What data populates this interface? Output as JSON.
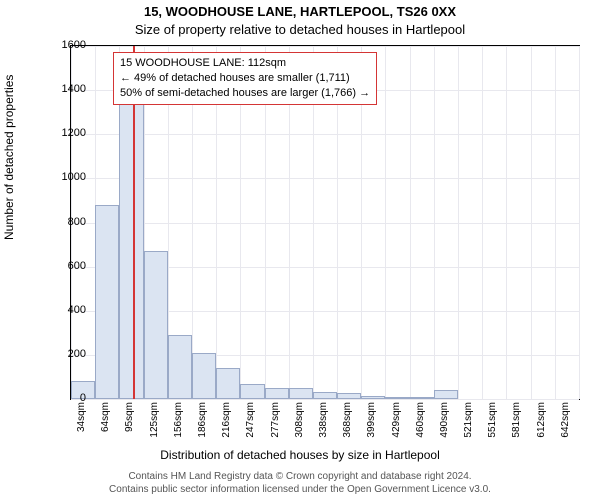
{
  "titles": {
    "line1": "15, WOODHOUSE LANE, HARTLEPOOL, TS26 0XX",
    "line2": "Size of property relative to detached houses in Hartlepool"
  },
  "axes": {
    "ylabel": "Number of detached properties",
    "xlabel": "Distribution of detached houses by size in Hartlepool",
    "ylim": [
      0,
      1600
    ],
    "ytick_step": 200,
    "yticks": [
      "0",
      "200",
      "400",
      "600",
      "800",
      "1000",
      "1200",
      "1400",
      "1600"
    ]
  },
  "chart": {
    "type": "histogram",
    "categories": [
      "34sqm",
      "64sqm",
      "95sqm",
      "125sqm",
      "156sqm",
      "186sqm",
      "216sqm",
      "247sqm",
      "277sqm",
      "308sqm",
      "338sqm",
      "368sqm",
      "399sqm",
      "429sqm",
      "460sqm",
      "490sqm",
      "521sqm",
      "551sqm",
      "581sqm",
      "612sqm",
      "642sqm"
    ],
    "range_mins": [
      34,
      64,
      95,
      125,
      156,
      186,
      216,
      247,
      277,
      308,
      338,
      368,
      399,
      429,
      460,
      490,
      521,
      551,
      581,
      612,
      642
    ],
    "values": [
      80,
      880,
      1340,
      670,
      290,
      210,
      140,
      70,
      50,
      50,
      30,
      25,
      15,
      10,
      10,
      40,
      0,
      0,
      0,
      0,
      0
    ],
    "bar_fill": "#dbe4f2",
    "bar_stroke": "#9aa9c7",
    "background": "#ffffff",
    "grid_color": "#e8e8ee",
    "marker_value_sqm": 112,
    "marker_color": "#d43535"
  },
  "annotation": {
    "line1": "15 WOODHOUSE LANE: 112sqm",
    "line2": "← 49% of detached houses are smaller (1,711)",
    "line3": "50% of semi-detached houses are larger (1,766) →",
    "border_color": "#d43535"
  },
  "footer": {
    "line1": "Contains HM Land Registry data © Crown copyright and database right 2024.",
    "line2": "Contains public sector information licensed under the Open Government Licence v3.0."
  },
  "style": {
    "title_fontsize": 13,
    "label_fontsize": 12,
    "tick_fontsize": 11,
    "footer_fontsize": 10
  }
}
